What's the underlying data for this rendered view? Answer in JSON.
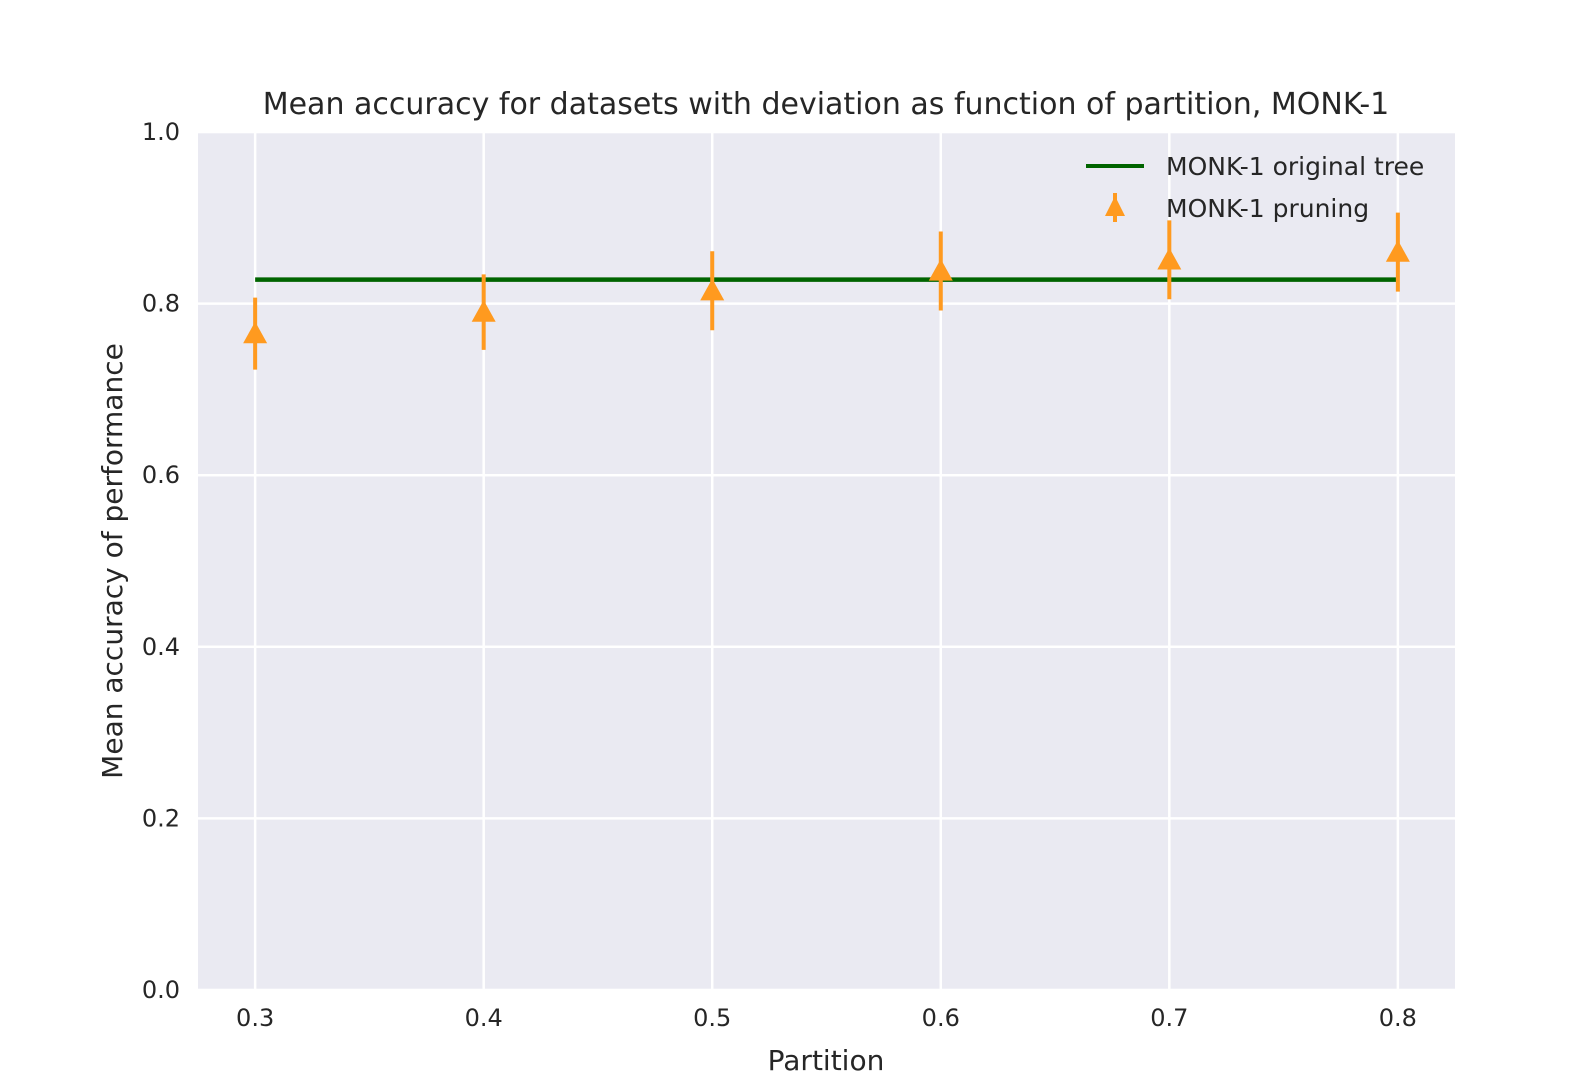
{
  "chart_data": {
    "type": "scatter",
    "title": "Mean accuracy for datasets with deviation as function of partition, MONK-1",
    "xlabel": "Partition",
    "ylabel": "Mean accuracy of performance",
    "xlim": [
      0.275,
      0.825
    ],
    "ylim": [
      0.0,
      1.0
    ],
    "xticks": [
      0.3,
      0.4,
      0.5,
      0.6,
      0.7,
      0.8
    ],
    "xtick_labels": [
      "0.3",
      "0.4",
      "0.5",
      "0.6",
      "0.7",
      "0.8"
    ],
    "yticks": [
      0.0,
      0.2,
      0.4,
      0.6,
      0.8,
      1.0
    ],
    "ytick_labels": [
      "0.0",
      "0.2",
      "0.4",
      "0.6",
      "0.8",
      "1.0"
    ],
    "grid": true,
    "legend_position": "top-right",
    "series": [
      {
        "name": "MONK-1 original tree",
        "kind": "line",
        "color": "#006400",
        "x": [
          0.3,
          0.8
        ],
        "y": [
          0.828,
          0.828
        ]
      },
      {
        "name": "MONK-1 pruning",
        "kind": "errorbar",
        "marker": "triangle-up",
        "color": "#ff9a1f",
        "x": [
          0.3,
          0.4,
          0.5,
          0.6,
          0.7,
          0.8
        ],
        "y": [
          0.765,
          0.79,
          0.815,
          0.838,
          0.851,
          0.86
        ],
        "yerr": [
          0.042,
          0.044,
          0.046,
          0.046,
          0.046,
          0.046
        ]
      }
    ]
  }
}
